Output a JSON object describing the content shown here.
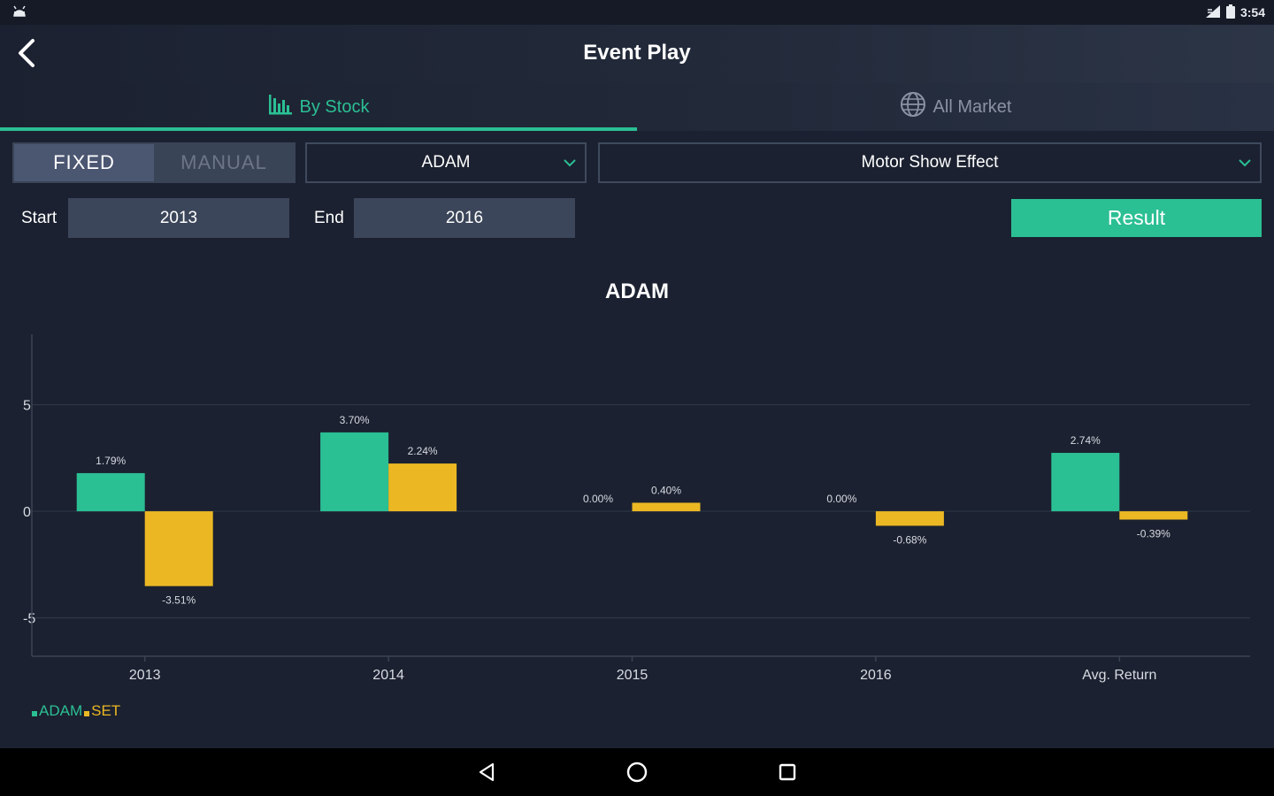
{
  "status": {
    "time": "3:54"
  },
  "header": {
    "title": "Event Play"
  },
  "tabs": [
    {
      "label": "By Stock",
      "active": true
    },
    {
      "label": "All Market",
      "active": false
    }
  ],
  "mode": {
    "fixed_label": "FIXED",
    "manual_label": "MANUAL",
    "selected": "FIXED"
  },
  "stock_select": {
    "value": "ADAM"
  },
  "event_select": {
    "value": "Motor Show Effect"
  },
  "period": {
    "start_label": "Start",
    "start_value": "2013",
    "end_label": "End",
    "end_value": "2016"
  },
  "result_button": {
    "label": "Result"
  },
  "colors": {
    "accent": "#2bbf94",
    "secondary": "#ebb824",
    "background": "#1b2130"
  },
  "chart_data": {
    "type": "bar",
    "title": "ADAM",
    "categories": [
      "2013",
      "2014",
      "2015",
      "2016",
      "Avg. Return"
    ],
    "series": [
      {
        "name": "ADAM",
        "color": "#2bbf94",
        "values": [
          1.79,
          3.7,
          0.0,
          0.0,
          2.74
        ],
        "labels": [
          "1.79%",
          "3.70%",
          "0.00%",
          "0.00%",
          "2.74%"
        ]
      },
      {
        "name": "SET",
        "color": "#ebb824",
        "values": [
          -3.51,
          2.24,
          0.4,
          -0.68,
          -0.39
        ],
        "labels": [
          "-3.51%",
          "2.24%",
          "0.40%",
          "-0.68%",
          "-0.39%"
        ]
      }
    ],
    "yticks": [
      5,
      0,
      -5
    ],
    "ytick_labels": [
      "5",
      "0",
      "-5"
    ],
    "ylim": [
      -6.8,
      8.3
    ],
    "grid": true,
    "legend": "bottom-left"
  }
}
